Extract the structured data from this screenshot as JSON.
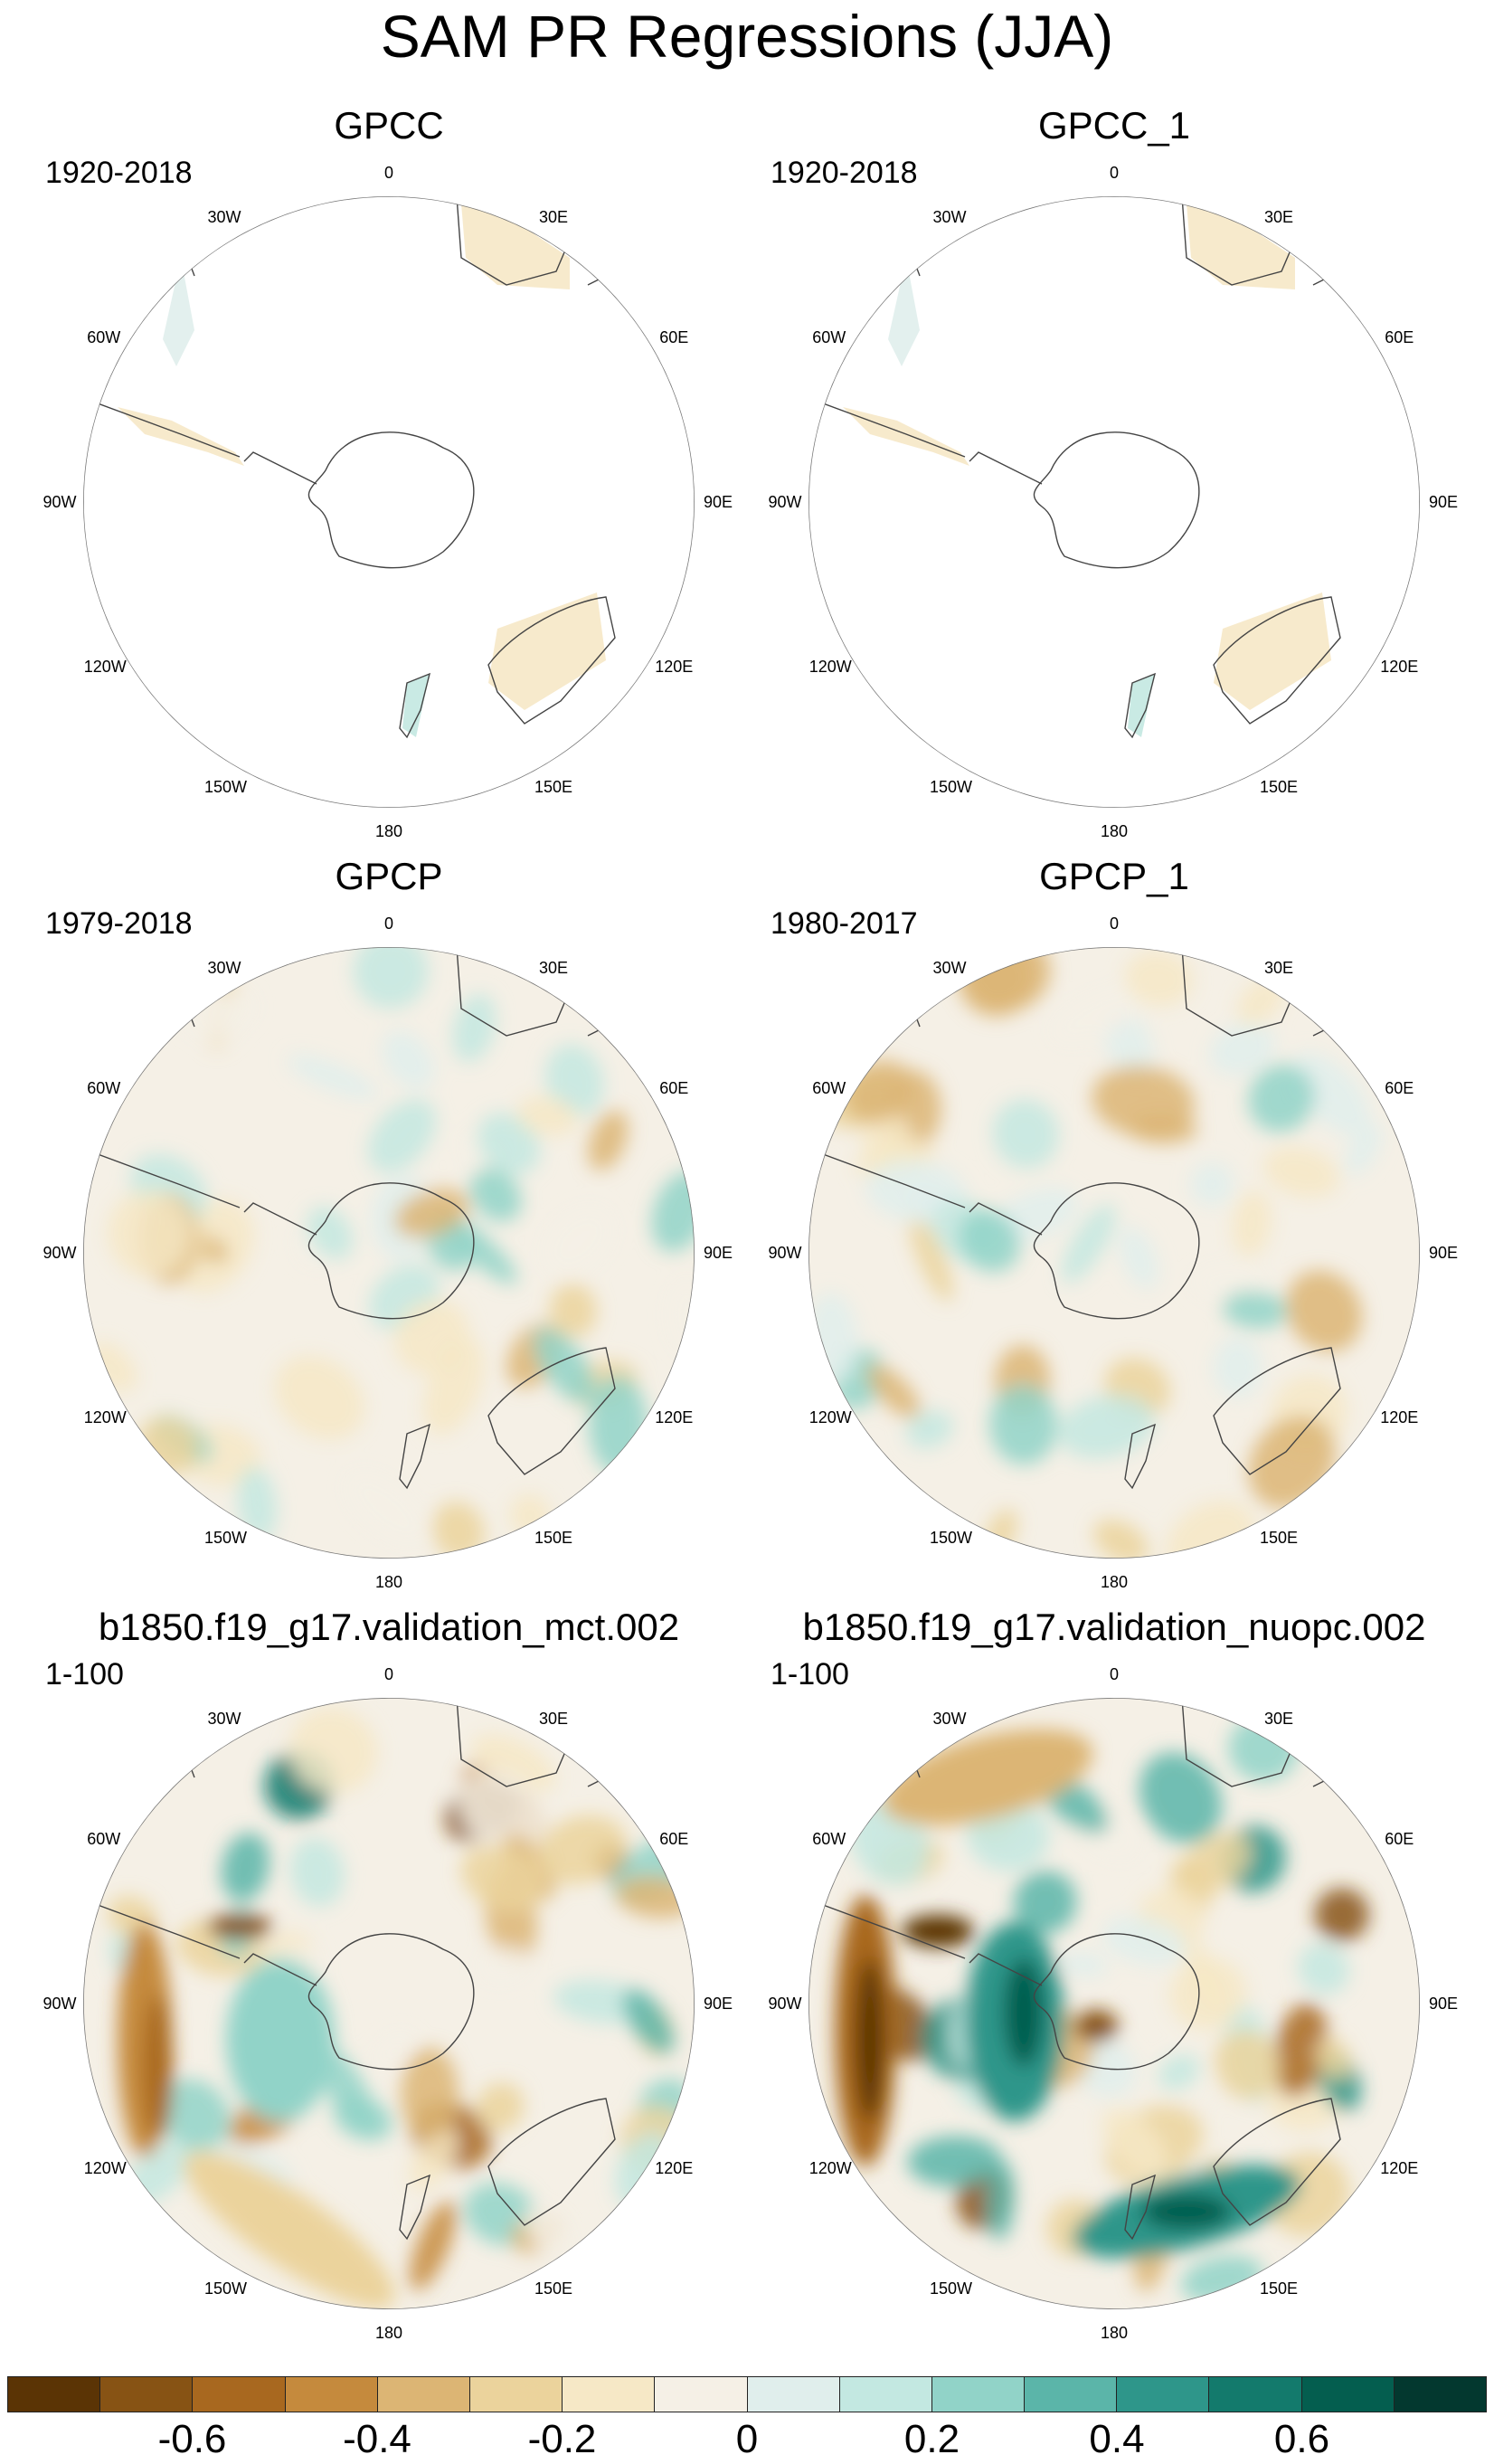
{
  "title": "SAM PR Regressions (JJA)",
  "panels": [
    {
      "id": "gpcc",
      "title": "GPCC",
      "period": "1920-2018",
      "coverage": "land"
    },
    {
      "id": "gpcc1",
      "title": "GPCC_1",
      "period": "1920-2018",
      "coverage": "land"
    },
    {
      "id": "gpcp",
      "title": "GPCP",
      "period": "1979-2018",
      "coverage": "full"
    },
    {
      "id": "gpcp1",
      "title": "GPCP_1",
      "period": "1980-2017",
      "coverage": "full"
    },
    {
      "id": "mct",
      "title": "b1850.f19_g17.validation_mct.002",
      "period": "1-100",
      "coverage": "full"
    },
    {
      "id": "nuopc",
      "title": "b1850.f19_g17.validation_nuopc.002",
      "period": "1-100",
      "coverage": "full"
    }
  ],
  "lon_labels": [
    "0",
    "30E",
    "60E",
    "90E",
    "120E",
    "150E",
    "180",
    "150W",
    "120W",
    "90W",
    "60W",
    "30W"
  ],
  "colorbar": {
    "colors": [
      "#5b3405",
      "#875314",
      "#a8681f",
      "#c58a3d",
      "#dcb574",
      "#ebd39c",
      "#f6e8c6",
      "#f5f0e6",
      "#e0eeec",
      "#c3e8e1",
      "#91d3c8",
      "#5bb5a9",
      "#2e968a",
      "#137a6c",
      "#045e4f",
      "#03382f"
    ],
    "tick_labels": [
      "-0.6",
      "-0.4",
      "-0.2",
      "0",
      "0.2",
      "0.4",
      "0.6"
    ],
    "tick_values": [
      -0.6,
      -0.4,
      -0.2,
      0,
      0.2,
      0.4,
      0.6
    ],
    "range": [
      -0.8,
      0.8
    ]
  }
}
